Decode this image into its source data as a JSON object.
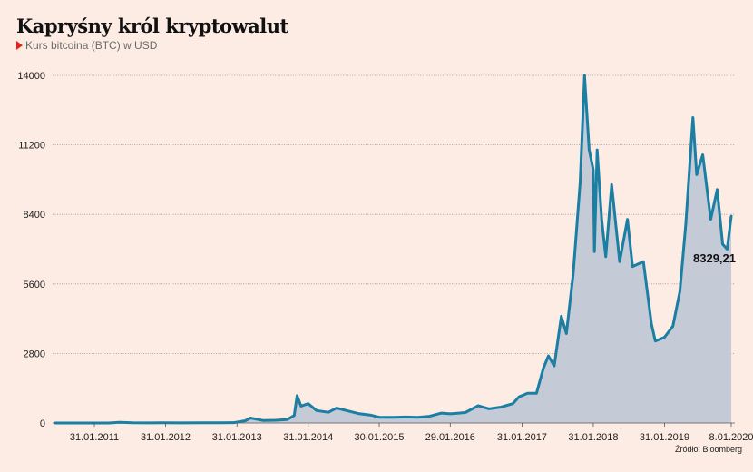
{
  "title": "Kapryśny król kryptowalut",
  "subtitle": "Kurs bitcoina (BTC) w USD",
  "source": "Źródło: Bloomberg",
  "colors": {
    "background": "#fcece4",
    "line": "#1b7ea3",
    "area": "#c2c8d6",
    "grid": "#9a9a9a",
    "marker": "#e2231a"
  },
  "chart_data": {
    "type": "area",
    "ylim": [
      0,
      14000
    ],
    "yticks": [
      0,
      2800,
      5600,
      8400,
      11200,
      14000
    ],
    "xlim": [
      "2010-07-01",
      "2020-01-08"
    ],
    "x_tick_labels": [
      "31.01.2011",
      "31.01.2012",
      "31.01.2013",
      "31.01.2014",
      "30.01.2015",
      "29.01.2016",
      "31.01.2017",
      "31.01.2018",
      "31.01.2019",
      "8.01.2020"
    ],
    "x_tick_dates": [
      "2011-01-31",
      "2012-01-31",
      "2013-01-31",
      "2014-01-31",
      "2015-01-30",
      "2016-01-29",
      "2017-01-31",
      "2018-01-31",
      "2019-01-31",
      "2020-01-08"
    ],
    "grid": "horizontal dotted",
    "last_value_label": "8329,21",
    "series": [
      {
        "points": [
          [
            "2010-07-15",
            0.07
          ],
          [
            "2010-10-15",
            0.1
          ],
          [
            "2011-01-15",
            0.4
          ],
          [
            "2011-04-15",
            1
          ],
          [
            "2011-06-10",
            30
          ],
          [
            "2011-08-15",
            10
          ],
          [
            "2011-11-15",
            3
          ],
          [
            "2012-01-15",
            6
          ],
          [
            "2012-04-15",
            5
          ],
          [
            "2012-08-15",
            10
          ],
          [
            "2012-11-15",
            12
          ],
          [
            "2013-01-15",
            15
          ],
          [
            "2013-03-15",
            90
          ],
          [
            "2013-04-10",
            200
          ],
          [
            "2013-06-15",
            100
          ],
          [
            "2013-08-15",
            110
          ],
          [
            "2013-10-15",
            140
          ],
          [
            "2013-11-20",
            300
          ],
          [
            "2013-12-05",
            1100
          ],
          [
            "2013-12-25",
            680
          ],
          [
            "2014-01-31",
            780
          ],
          [
            "2014-03-15",
            500
          ],
          [
            "2014-05-15",
            430
          ],
          [
            "2014-06-25",
            600
          ],
          [
            "2014-08-15",
            500
          ],
          [
            "2014-10-15",
            380
          ],
          [
            "2014-12-15",
            320
          ],
          [
            "2015-01-31",
            230
          ],
          [
            "2015-04-15",
            230
          ],
          [
            "2015-06-15",
            240
          ],
          [
            "2015-08-15",
            230
          ],
          [
            "2015-10-15",
            270
          ],
          [
            "2015-12-15",
            400
          ],
          [
            "2016-01-29",
            370
          ],
          [
            "2016-04-15",
            420
          ],
          [
            "2016-06-20",
            700
          ],
          [
            "2016-08-15",
            570
          ],
          [
            "2016-10-15",
            640
          ],
          [
            "2016-12-15",
            780
          ],
          [
            "2017-01-15",
            1050
          ],
          [
            "2017-02-28",
            1200
          ],
          [
            "2017-04-15",
            1200
          ],
          [
            "2017-05-20",
            2200
          ],
          [
            "2017-06-15",
            2700
          ],
          [
            "2017-07-15",
            2300
          ],
          [
            "2017-08-20",
            4300
          ],
          [
            "2017-09-15",
            3600
          ],
          [
            "2017-10-20",
            6000
          ],
          [
            "2017-11-25",
            9700
          ],
          [
            "2017-12-17",
            14000
          ],
          [
            "2018-01-10",
            11000
          ],
          [
            "2018-01-31",
            10200
          ],
          [
            "2018-02-06",
            6900
          ],
          [
            "2018-02-20",
            11000
          ],
          [
            "2018-03-15",
            8200
          ],
          [
            "2018-04-05",
            6700
          ],
          [
            "2018-05-05",
            9600
          ],
          [
            "2018-06-15",
            6500
          ],
          [
            "2018-07-25",
            8200
          ],
          [
            "2018-08-20",
            6300
          ],
          [
            "2018-10-15",
            6500
          ],
          [
            "2018-11-25",
            4000
          ],
          [
            "2018-12-15",
            3300
          ],
          [
            "2019-01-31",
            3450
          ],
          [
            "2019-03-15",
            3900
          ],
          [
            "2019-04-20",
            5300
          ],
          [
            "2019-05-20",
            8000
          ],
          [
            "2019-06-26",
            12300
          ],
          [
            "2019-07-15",
            10000
          ],
          [
            "2019-08-15",
            10800
          ],
          [
            "2019-09-25",
            8200
          ],
          [
            "2019-10-28",
            9400
          ],
          [
            "2019-11-25",
            7200
          ],
          [
            "2019-12-18",
            7000
          ],
          [
            "2020-01-08",
            8329.21
          ]
        ]
      }
    ]
  }
}
